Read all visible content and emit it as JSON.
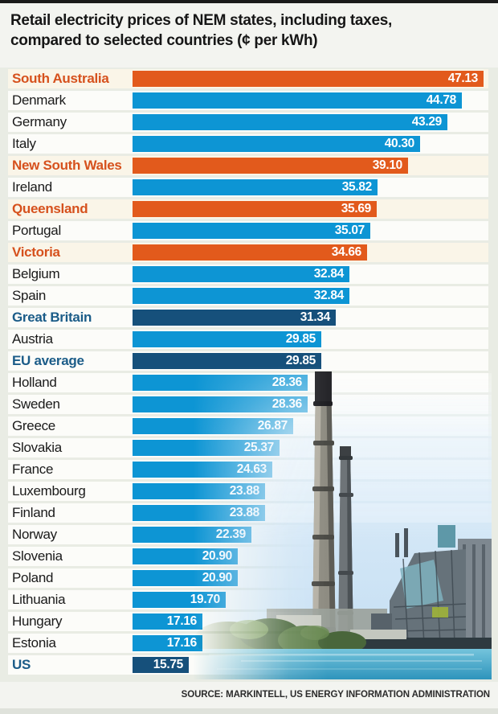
{
  "title": {
    "line1": "Retail electricity prices of NEM states, including taxes,",
    "line2": "compared to selected countries (¢ per kWh)"
  },
  "source": "SOURCE: MARKINTELL, US ENERGY INFORMATION ADMINISTRATION",
  "colors": {
    "orange": "#E25A1C",
    "blue": "#0D95D4",
    "dark_blue": "#16507B",
    "orange_label": "#D6511D",
    "dark_blue_label": "#1B5C88"
  },
  "chart_data": {
    "type": "bar",
    "orientation": "horizontal",
    "title": "Retail electricity prices of NEM states, including taxes, compared to selected countries (¢ per kWh)",
    "unit": "¢ per kWh",
    "value_labels_on_bars": true,
    "legend": "none",
    "category_key": {
      "nem": "NEM state (orange)",
      "country": "country (light blue)",
      "benchmark": "highlighted benchmark (dark blue)"
    },
    "series": [
      {
        "name": "South Australia",
        "value": 47.13,
        "display": "47.13",
        "category": "nem"
      },
      {
        "name": "Denmark",
        "value": 44.78,
        "display": "44.78",
        "category": "country"
      },
      {
        "name": "Germany",
        "value": 43.29,
        "display": "43.29",
        "category": "country"
      },
      {
        "name": "Italy",
        "value": 40.3,
        "display": "40.30",
        "category": "country"
      },
      {
        "name": "New South Wales",
        "value": 39.1,
        "display": "39.10",
        "category": "nem"
      },
      {
        "name": "Ireland",
        "value": 35.82,
        "display": "35.82",
        "category": "country"
      },
      {
        "name": "Queensland",
        "value": 35.69,
        "display": "35.69",
        "category": "nem"
      },
      {
        "name": "Portugal",
        "value": 35.07,
        "display": "35.07",
        "category": "country"
      },
      {
        "name": "Victoria",
        "value": 34.66,
        "display": "34.66",
        "category": "nem"
      },
      {
        "name": "Belgium",
        "value": 32.84,
        "display": "32.84",
        "category": "country"
      },
      {
        "name": "Spain",
        "value": 32.84,
        "display": "32.84",
        "category": "country"
      },
      {
        "name": "Great Britain",
        "value": 31.34,
        "display": "31.34",
        "category": "benchmark"
      },
      {
        "name": "Austria",
        "value": 29.85,
        "display": "29.85",
        "category": "country"
      },
      {
        "name": "EU average",
        "value": 29.85,
        "display": "29.85",
        "category": "benchmark"
      },
      {
        "name": "Holland",
        "value": 28.36,
        "display": "28.36",
        "category": "country"
      },
      {
        "name": "Sweden",
        "value": 28.36,
        "display": "28.36",
        "category": "country"
      },
      {
        "name": "Greece",
        "value": 26.87,
        "display": "26.87",
        "category": "country"
      },
      {
        "name": "Slovakia",
        "value": 25.37,
        "display": "25.37",
        "category": "country"
      },
      {
        "name": "France",
        "value": 24.63,
        "display": "24.63",
        "category": "country"
      },
      {
        "name": "Luxembourg",
        "value": 23.88,
        "display": "23.88",
        "category": "country"
      },
      {
        "name": "Finland",
        "value": 23.88,
        "display": "23.88",
        "category": "country"
      },
      {
        "name": "Norway",
        "value": 22.39,
        "display": "22.39",
        "category": "country"
      },
      {
        "name": "Slovenia",
        "value": 20.9,
        "display": "20.90",
        "category": "country"
      },
      {
        "name": "Poland",
        "value": 20.9,
        "display": "20.90",
        "category": "country"
      },
      {
        "name": "Lithuania",
        "value": 19.7,
        "display": "19.70",
        "category": "country"
      },
      {
        "name": "Hungary",
        "value": 17.16,
        "display": "17.16",
        "category": "country"
      },
      {
        "name": "Estonia",
        "value": 17.16,
        "display": "17.16",
        "category": "country"
      },
      {
        "name": "US",
        "value": 15.75,
        "display": "15.75",
        "category": "benchmark"
      }
    ]
  }
}
